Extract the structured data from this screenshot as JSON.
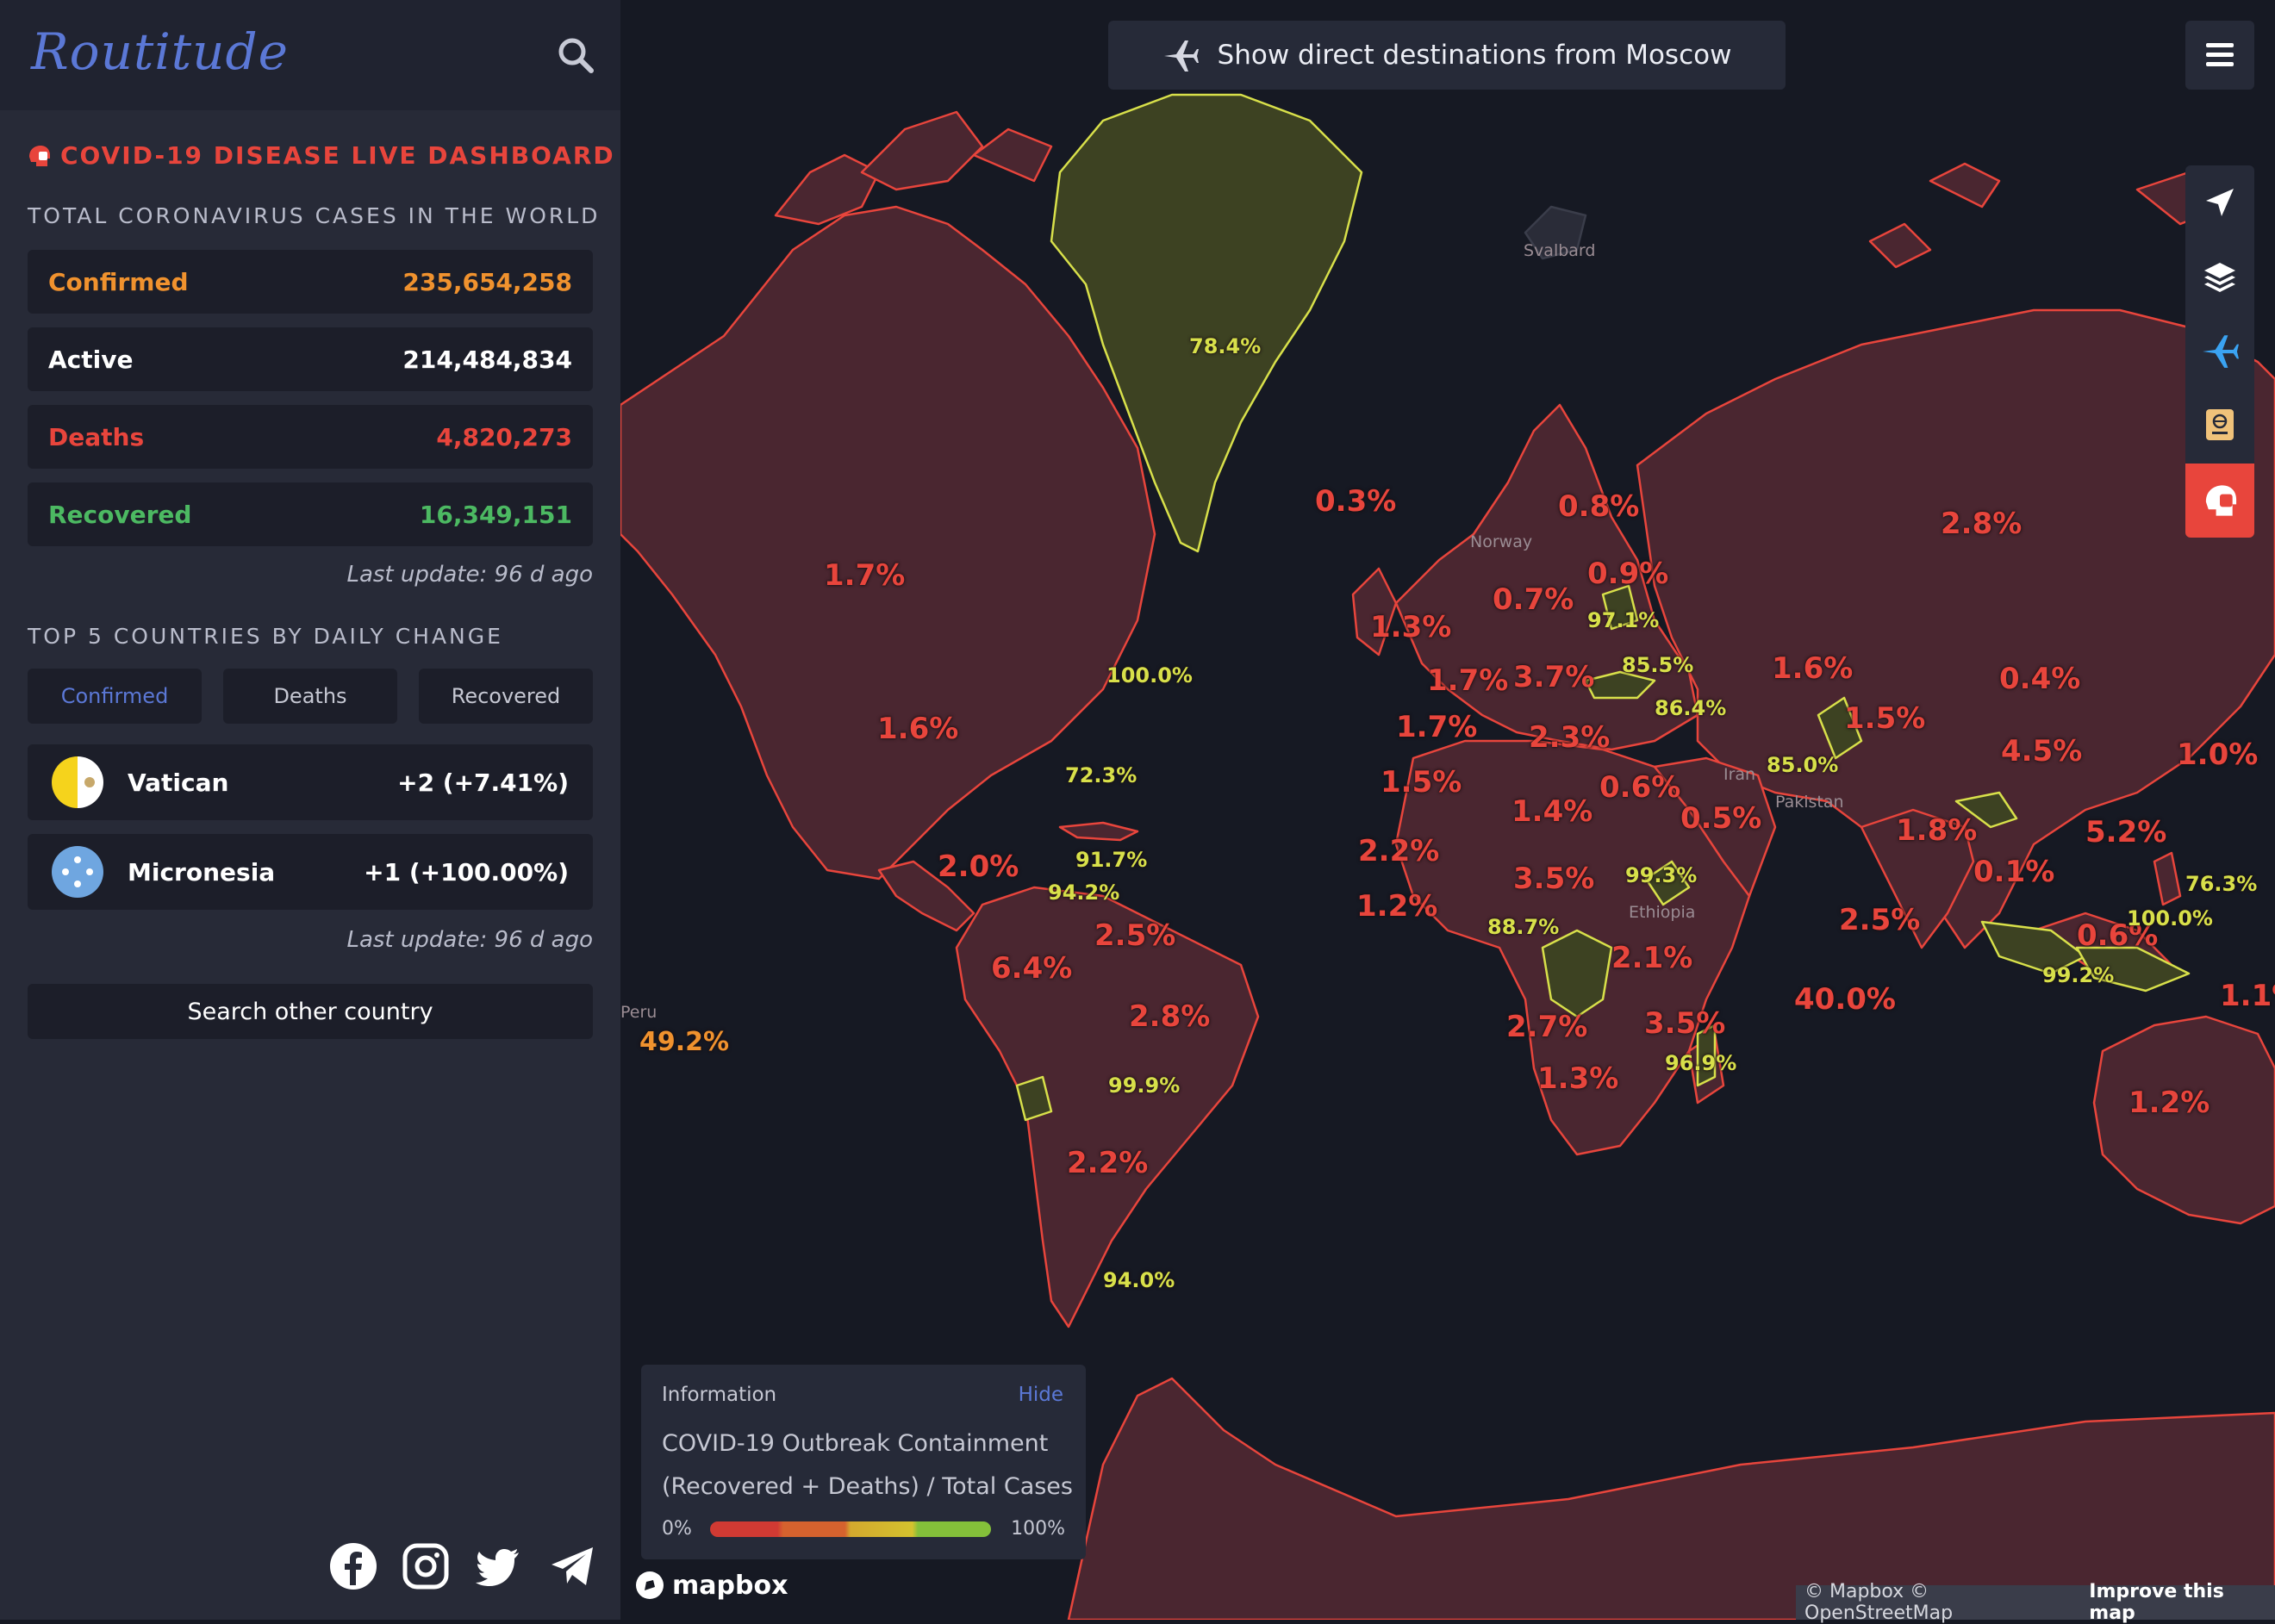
{
  "app": {
    "logo": "Routitude"
  },
  "sidebar": {
    "dashboard_title": "COVID-19 DISEASE LIVE DASHBOARD",
    "totals_title": "TOTAL CORONAVIRUS CASES IN THE WORLD",
    "stats": [
      {
        "label": "Confirmed",
        "value": "235,654,258",
        "color": "#f0922e"
      },
      {
        "label": "Active",
        "value": "214,484,834",
        "color": "#ffffff"
      },
      {
        "label": "Deaths",
        "value": "4,820,273",
        "color": "#e8453c"
      },
      {
        "label": "Recovered",
        "value": "16,349,151",
        "color": "#4cb962"
      }
    ],
    "last_update_1": "Last update: 96 d ago",
    "top5_title": "TOP 5 COUNTRIES BY DAILY CHANGE",
    "tabs": [
      "Confirmed",
      "Deaths",
      "Recovered"
    ],
    "active_tab": "Confirmed",
    "countries": [
      {
        "name": "Vatican",
        "change": "+2 (+7.41%)",
        "flag": "vatican-flag-icon"
      },
      {
        "name": "Micronesia",
        "change": "+1 (+100.00%)",
        "flag": "micronesia-flag-icon"
      }
    ],
    "last_update_2": "Last update: 96 d ago",
    "search_other": "Search other country",
    "social": [
      "facebook-icon",
      "instagram-icon",
      "twitter-icon",
      "telegram-icon"
    ]
  },
  "map": {
    "direct_button": "Show direct destinations from Moscow",
    "toolbar": [
      "navigate-icon",
      "layers-icon",
      "plane-icon",
      "passport-icon",
      "covid-icon"
    ],
    "labels": [
      {
        "id": "greenland",
        "text": "78.4%",
        "tone": "y"
      },
      {
        "id": "canada",
        "text": "1.7%",
        "tone": "r"
      },
      {
        "id": "usa",
        "text": "1.6%",
        "tone": "r"
      },
      {
        "id": "bermuda",
        "text": "100.0%",
        "tone": "y"
      },
      {
        "id": "atlantic",
        "text": "72.3%",
        "tone": "y"
      },
      {
        "id": "caribbean1",
        "text": "91.7%",
        "tone": "y"
      },
      {
        "id": "caribbean2",
        "text": "94.2%",
        "tone": "y"
      },
      {
        "id": "central-america",
        "text": "2.0%",
        "tone": "r"
      },
      {
        "id": "colombia",
        "text": "2.5%",
        "tone": "r"
      },
      {
        "id": "ecuador",
        "text": "6.4%",
        "tone": "r"
      },
      {
        "id": "brazil",
        "text": "2.8%",
        "tone": "r"
      },
      {
        "id": "paraguay",
        "text": "99.9%",
        "tone": "y"
      },
      {
        "id": "argentina",
        "text": "2.2%",
        "tone": "r"
      },
      {
        "id": "falklands",
        "text": "94.0%",
        "tone": "y"
      },
      {
        "id": "pacific",
        "text": "49.2%",
        "tone": "o"
      },
      {
        "id": "iceland",
        "text": "0.3%",
        "tone": "r"
      },
      {
        "id": "scandinavia",
        "text": "0.8%",
        "tone": "r"
      },
      {
        "id": "baltic",
        "text": "0.9%",
        "tone": "r"
      },
      {
        "id": "poland",
        "text": "0.7%",
        "tone": "r"
      },
      {
        "id": "belarus",
        "text": "97.1%",
        "tone": "y"
      },
      {
        "id": "uk",
        "text": "1.3%",
        "tone": "r"
      },
      {
        "id": "france",
        "text": "1.7%",
        "tone": "r"
      },
      {
        "id": "balkans",
        "text": "3.7%",
        "tone": "r"
      },
      {
        "id": "ukraine",
        "text": "85.5%",
        "tone": "y"
      },
      {
        "id": "russia",
        "text": "2.8%",
        "tone": "r"
      },
      {
        "id": "kazakhstan",
        "text": "1.6%",
        "tone": "r"
      },
      {
        "id": "mongolia",
        "text": "0.4%",
        "tone": "r"
      },
      {
        "id": "georgia",
        "text": "86.4%",
        "tone": "y"
      },
      {
        "id": "central-asia",
        "text": "1.5%",
        "tone": "r"
      },
      {
        "id": "spain",
        "text": "1.7%",
        "tone": "r"
      },
      {
        "id": "turkey",
        "text": "2.3%",
        "tone": "r"
      },
      {
        "id": "afghanistan",
        "text": "85.0%",
        "tone": "y"
      },
      {
        "id": "china",
        "text": "4.5%",
        "tone": "r"
      },
      {
        "id": "korea",
        "text": "1.0%",
        "tone": "r"
      },
      {
        "id": "morocco",
        "text": "1.5%",
        "tone": "r"
      },
      {
        "id": "libya",
        "text": "1.4%",
        "tone": "r"
      },
      {
        "id": "saudi",
        "text": "0.6%",
        "tone": "r"
      },
      {
        "id": "gulf",
        "text": "0.5%",
        "tone": "r"
      },
      {
        "id": "mauritania",
        "text": "2.2%",
        "tone": "r"
      },
      {
        "id": "india",
        "text": "1.8%",
        "tone": "r"
      },
      {
        "id": "indochina",
        "text": "0.1%",
        "tone": "r"
      },
      {
        "id": "taiwan",
        "text": "5.2%",
        "tone": "r"
      },
      {
        "id": "pacific-east",
        "text": "76.3%",
        "tone": "y"
      },
      {
        "id": "guinea",
        "text": "1.2%",
        "tone": "r"
      },
      {
        "id": "chad",
        "text": "3.5%",
        "tone": "r"
      },
      {
        "id": "somalia",
        "text": "99.3%",
        "tone": "y"
      },
      {
        "id": "cameroon",
        "text": "88.7%",
        "tone": "y"
      },
      {
        "id": "kenya",
        "text": "2.1%",
        "tone": "r"
      },
      {
        "id": "sri-lanka",
        "text": "2.5%",
        "tone": "r"
      },
      {
        "id": "philippines",
        "text": "0.6%",
        "tone": "r"
      },
      {
        "id": "micronesia",
        "text": "100.0%",
        "tone": "y"
      },
      {
        "id": "indonesia",
        "text": "99.2%",
        "tone": "y"
      },
      {
        "id": "png",
        "text": "1.1%",
        "tone": "r"
      },
      {
        "id": "angola",
        "text": "2.7%",
        "tone": "r"
      },
      {
        "id": "mozambique",
        "text": "3.5%",
        "tone": "r"
      },
      {
        "id": "indian-ocean",
        "text": "40.0%",
        "tone": "r"
      },
      {
        "id": "madagascar",
        "text": "96.9%",
        "tone": "y"
      },
      {
        "id": "south-africa",
        "text": "1.3%",
        "tone": "r"
      },
      {
        "id": "australia",
        "text": "1.2%",
        "tone": "r"
      }
    ],
    "places": [
      {
        "id": "svalbard",
        "text": "Svalbard"
      },
      {
        "id": "norway",
        "text": "Norway"
      },
      {
        "id": "iran",
        "text": "Iran"
      },
      {
        "id": "pakistan",
        "text": "Pakistan"
      },
      {
        "id": "ethiopia",
        "text": "Ethiopia"
      },
      {
        "id": "peru",
        "text": "Peru"
      }
    ],
    "info": {
      "title": "Information",
      "hide": "Hide",
      "line1": "COVID-19 Outbreak Containment",
      "line2": "(Recovered + Deaths) / Total Cases",
      "min": "0%",
      "max": "100%"
    },
    "mapbox_logo": "mapbox",
    "attribution": {
      "text": "© Mapbox © OpenStreetMap",
      "link": "Improve this map"
    }
  }
}
